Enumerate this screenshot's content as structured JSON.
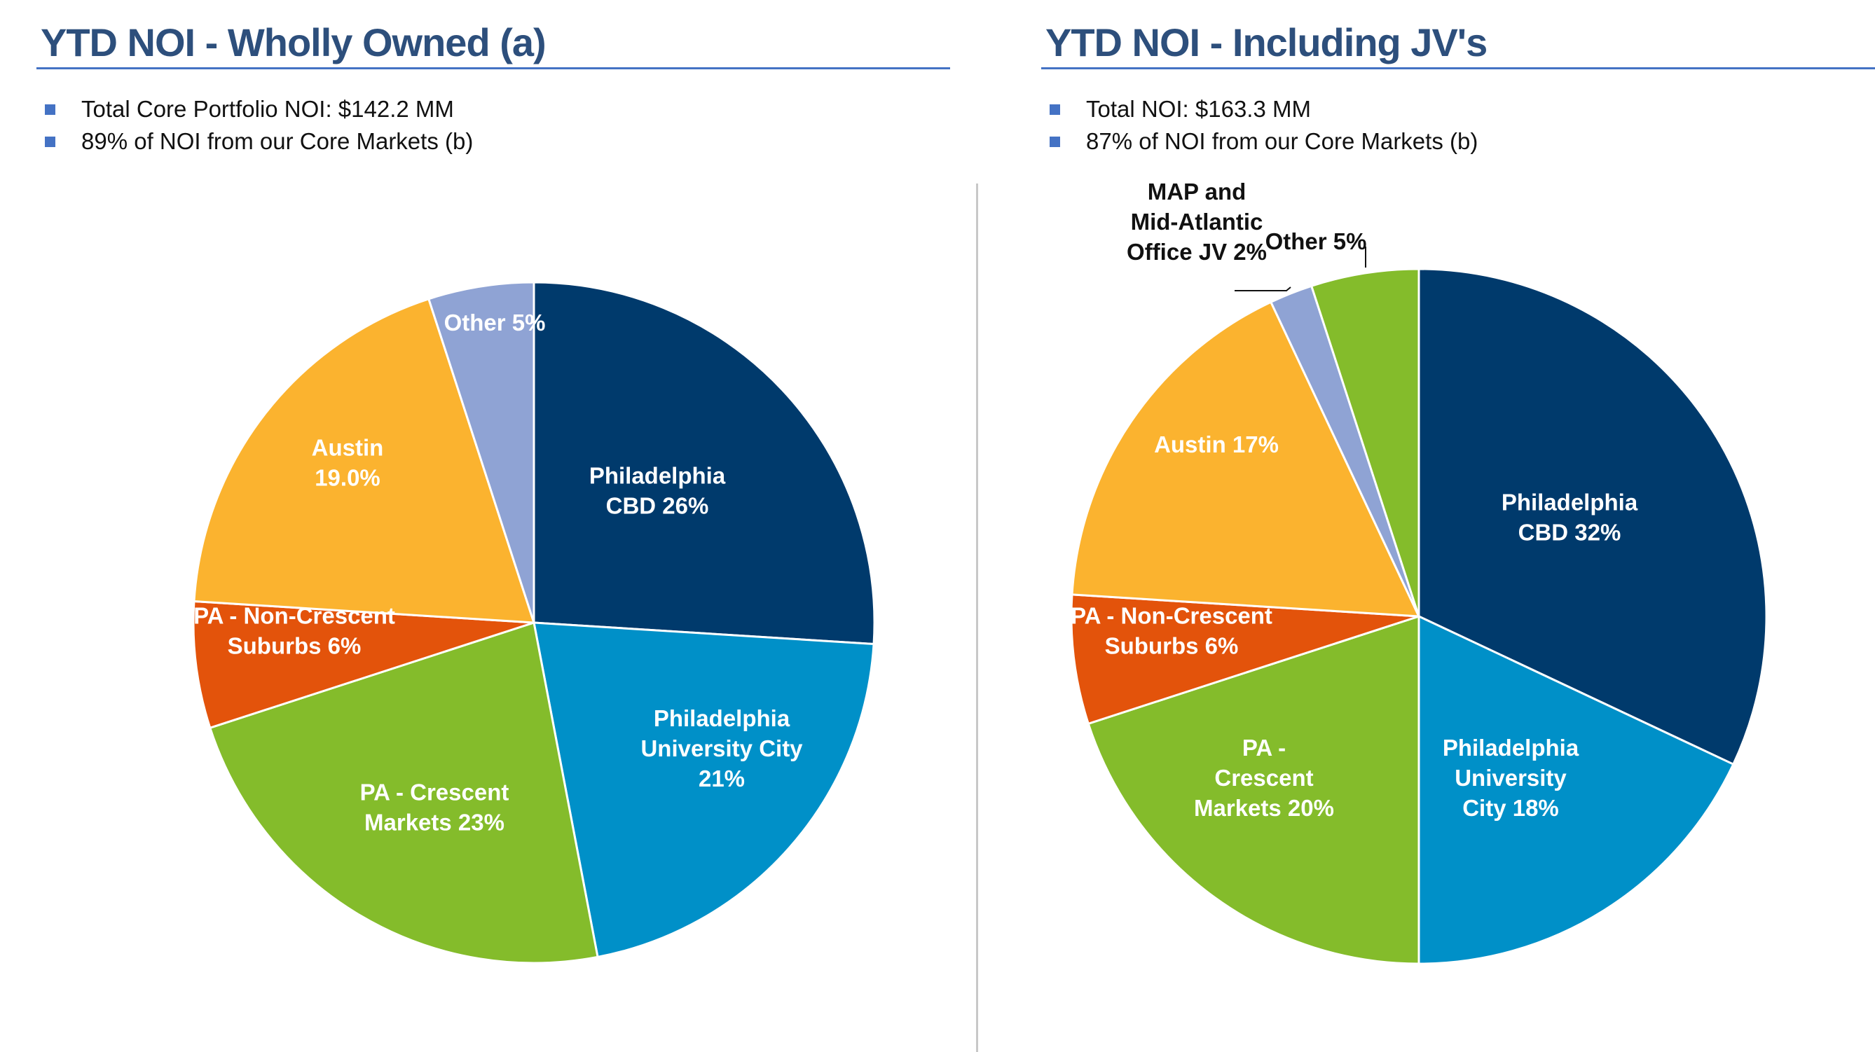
{
  "colors": {
    "title": "#2d4f7c",
    "rule": "#4472c4",
    "bullet": "#4472c4",
    "philadelphia_cbd": "#003a6c",
    "philadelphia_university_city": "#0090c8",
    "pa_crescent": "#84bc2b",
    "pa_non_crescent": "#e3530b",
    "austin": "#fbb32f",
    "other_left": "#8fa3d4",
    "map_jv": "#8fa3d4",
    "other_right": "#84bc2b"
  },
  "left": {
    "title": "YTD NOI - Wholly Owned (a)",
    "bullets": [
      "Total Core Portfolio NOI: $142.2 MM",
      "89% of NOI from our Core Markets (b)"
    ]
  },
  "right": {
    "title": "YTD NOI - Including JV's",
    "bullets": [
      "Total NOI: $163.3 MM",
      "87% of NOI from our Core Markets (b)"
    ]
  },
  "chart_data": [
    {
      "type": "pie",
      "title": "YTD NOI - Wholly Owned (a)",
      "slices": [
        {
          "key": "philadelphia_cbd",
          "label": [
            "Philadelphia",
            "CBD 26%"
          ],
          "value": 26,
          "color": "#003a6c",
          "text_color": "#ffffff"
        },
        {
          "key": "philadelphia_university_city",
          "label": [
            "Philadelphia",
            "University City",
            "21%"
          ],
          "value": 21,
          "color": "#0090c8",
          "text_color": "#ffffff"
        },
        {
          "key": "pa_crescent",
          "label": [
            "PA - Crescent",
            "Markets 23%"
          ],
          "value": 23,
          "color": "#84bc2b",
          "text_color": "#ffffff"
        },
        {
          "key": "pa_non_crescent",
          "label": [
            "PA - Non-Crescent",
            "Suburbs 6%"
          ],
          "value": 6,
          "color": "#e3530b",
          "text_color": "#ffffff"
        },
        {
          "key": "austin",
          "label": [
            "Austin",
            "19.0%"
          ],
          "value": 19,
          "color": "#fbb32f",
          "text_color": "#ffffff"
        },
        {
          "key": "other",
          "label": [
            "Other 5%"
          ],
          "value": 5,
          "color": "#8fa3d4",
          "text_color": "#ffffff"
        }
      ]
    },
    {
      "type": "pie",
      "title": "YTD NOI - Including JV's",
      "slices": [
        {
          "key": "philadelphia_cbd",
          "label": [
            "Philadelphia",
            "CBD 32%"
          ],
          "value": 32,
          "color": "#003a6c",
          "text_color": "#ffffff"
        },
        {
          "key": "philadelphia_university_city",
          "label": [
            "Philadelphia",
            "University",
            "City 18%"
          ],
          "value": 18,
          "color": "#0090c8",
          "text_color": "#ffffff"
        },
        {
          "key": "pa_crescent",
          "label": [
            "PA -",
            "Crescent",
            "Markets 20%"
          ],
          "value": 20,
          "color": "#84bc2b",
          "text_color": "#ffffff"
        },
        {
          "key": "pa_non_crescent",
          "label": [
            "PA - Non-Crescent",
            "Suburbs 6%"
          ],
          "value": 6,
          "color": "#e3530b",
          "text_color": "#ffffff"
        },
        {
          "key": "austin",
          "label": [
            "Austin 17%"
          ],
          "value": 17,
          "color": "#fbb32f",
          "text_color": "#ffffff"
        },
        {
          "key": "map_mid_atlantic_jv",
          "label": [
            "MAP and",
            "Mid-Atlantic",
            "Office JV 2%"
          ],
          "value": 2,
          "color": "#8fa3d4",
          "text_color": "#111111"
        },
        {
          "key": "other",
          "label": [
            "Other 5%"
          ],
          "value": 5,
          "color": "#84bc2b",
          "text_color": "#111111"
        }
      ]
    }
  ]
}
